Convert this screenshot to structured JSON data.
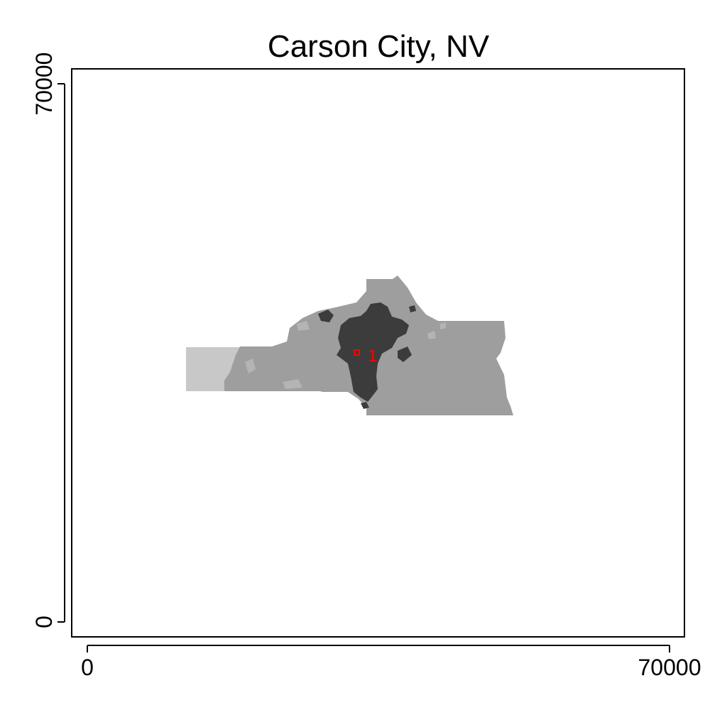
{
  "chart_data": {
    "type": "map",
    "title": "Carson City, NV",
    "xlim": [
      0,
      70000
    ],
    "ylim": [
      0,
      70000
    ],
    "x_ticks": [
      {
        "value": 0,
        "label": "0"
      },
      {
        "value": 70000,
        "label": "70000"
      }
    ],
    "y_ticks": [
      {
        "value": 0,
        "label": "0"
      },
      {
        "value": 70000,
        "label": "70000"
      }
    ],
    "annotations": [
      {
        "text": "1",
        "x": 34300,
        "y": 34700,
        "color": "#ff0000"
      }
    ],
    "center_marker": {
      "x": 32400,
      "y": 35050,
      "color": "#ff0000"
    },
    "grid": false,
    "legend": "none",
    "colors": {
      "light_region": "#c8c8c8",
      "medium_region": "#9e9e9e",
      "dark_region": "#3c3c3c",
      "highlight": "#ff0000",
      "axis": "#000000"
    }
  }
}
